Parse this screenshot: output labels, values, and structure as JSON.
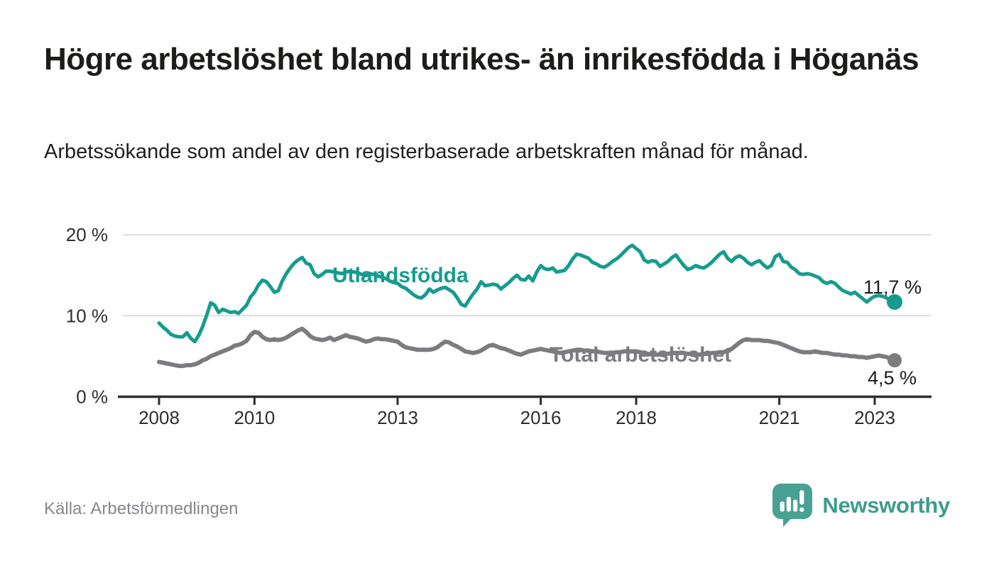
{
  "header": {
    "title": "Högre arbetslöshet bland utrikes- än inrikesfödda i Höganäs",
    "subtitle": "Arbetssökande som andel av den registerbaserade arbetskraften månad för månad."
  },
  "footer": {
    "source": "Källa: Arbetsförmedlingen",
    "brand": "Newsworthy",
    "logo_icon": "speech-bubble-bar-chart-icon",
    "logo_color": "#49a193"
  },
  "colors": {
    "series_utlandsfodda": "#169c8e",
    "series_total": "#7c7c80",
    "gridline": "#dddddd",
    "axis": "#2e2e2e",
    "background": "#ffffff"
  },
  "chart_data": {
    "type": "line",
    "title": "Högre arbetslöshet bland utrikes- än inrikesfödda i Höganäs",
    "subtitle": "Arbetssökande som andel av den registerbaserade arbetskraften månad för månad.",
    "unit": "%",
    "grid": "horizontal-only",
    "legend_position": "inline-labels-on-lines",
    "x_start_year": 2008,
    "x_step_years": 0.0833333,
    "x_axis": {
      "ticks": [
        2008,
        2010,
        2013,
        2016,
        2018,
        2021,
        2023
      ],
      "tick_labels": [
        "2008",
        "2010",
        "2013",
        "2016",
        "2018",
        "2021",
        "2023"
      ],
      "range_years": [
        2007.15,
        2024.2
      ]
    },
    "y_axis": {
      "ticks": [
        0,
        10,
        20
      ],
      "tick_labels": [
        "0 %",
        "10 %",
        "20 %"
      ],
      "range": [
        0,
        20
      ]
    },
    "series": [
      {
        "name": "Utlandsfödda",
        "color": "#169c8e",
        "line_width": 5,
        "end_value": 11.7,
        "end_label": "11,7 %",
        "values": [
          9.1,
          8.6,
          8.2,
          7.7,
          7.5,
          7.4,
          7.4,
          7.9,
          7.2,
          6.8,
          7.6,
          8.7,
          10.1,
          11.6,
          11.3,
          10.4,
          10.8,
          10.6,
          10.4,
          10.5,
          10.3,
          10.8,
          11.3,
          12.3,
          12.9,
          13.8,
          14.4,
          14.2,
          13.6,
          12.9,
          13.1,
          14.3,
          15.2,
          15.9,
          16.5,
          16.9,
          17.2,
          16.5,
          16.3,
          15.2,
          14.8,
          15.1,
          15.5,
          15.5,
          15.4,
          15.3,
          15.2,
          15.4,
          15.5,
          15.4,
          15.3,
          15.1,
          15.0,
          15.2,
          15.1,
          14.9,
          14.8,
          14.6,
          14.3,
          14.1,
          14.0,
          13.6,
          13.4,
          13.0,
          12.6,
          12.3,
          12.2,
          12.6,
          13.3,
          12.9,
          13.2,
          13.4,
          13.5,
          13.2,
          12.9,
          12.2,
          11.4,
          11.2,
          12.0,
          12.7,
          13.3,
          14.2,
          13.7,
          13.8,
          13.9,
          13.8,
          13.3,
          13.7,
          14.1,
          14.6,
          15.0,
          14.5,
          14.4,
          14.9,
          14.3,
          15.4,
          16.2,
          15.8,
          15.7,
          15.9,
          15.4,
          15.5,
          15.6,
          16.2,
          17.0,
          17.6,
          17.5,
          17.3,
          17.1,
          16.6,
          16.4,
          16.1,
          16.0,
          16.3,
          16.7,
          17.0,
          17.4,
          17.9,
          18.4,
          18.7,
          18.3,
          17.9,
          16.9,
          16.6,
          16.8,
          16.7,
          16.1,
          16.4,
          16.7,
          17.2,
          17.5,
          16.8,
          16.2,
          15.7,
          15.9,
          16.2,
          16.0,
          15.9,
          16.2,
          16.6,
          17.1,
          17.6,
          17.9,
          17.1,
          16.7,
          17.2,
          17.4,
          17.1,
          16.6,
          16.3,
          16.6,
          16.8,
          16.3,
          15.9,
          16.2,
          17.3,
          17.6,
          16.7,
          16.6,
          16.0,
          15.7,
          15.2,
          15.1,
          15.2,
          15.1,
          14.9,
          14.7,
          14.2,
          14.0,
          14.2,
          14.0,
          13.5,
          13.1,
          12.9,
          12.7,
          12.9,
          12.5,
          12.1,
          11.7,
          12.1,
          12.4,
          12.5,
          12.4,
          12.2,
          11.9,
          11.7
        ]
      },
      {
        "name": "Total arbetslöshet",
        "color": "#7c7c80",
        "line_width": 6,
        "end_value": 4.5,
        "end_label": "4,5 %",
        "values": [
          4.3,
          4.2,
          4.1,
          4.0,
          3.9,
          3.8,
          3.8,
          3.9,
          3.9,
          4.0,
          4.2,
          4.5,
          4.7,
          5.0,
          5.2,
          5.4,
          5.6,
          5.8,
          6.0,
          6.3,
          6.4,
          6.6,
          6.9,
          7.6,
          8.0,
          7.9,
          7.4,
          7.1,
          7.0,
          7.1,
          7.0,
          7.1,
          7.3,
          7.6,
          7.9,
          8.2,
          8.4,
          8.0,
          7.5,
          7.2,
          7.1,
          7.0,
          7.1,
          7.3,
          7.0,
          7.2,
          7.4,
          7.6,
          7.4,
          7.3,
          7.2,
          7.0,
          6.8,
          6.9,
          7.1,
          7.2,
          7.1,
          7.1,
          7.0,
          6.9,
          6.8,
          6.4,
          6.1,
          6.0,
          5.9,
          5.8,
          5.8,
          5.8,
          5.8,
          5.9,
          6.1,
          6.5,
          6.8,
          6.7,
          6.4,
          6.2,
          5.9,
          5.6,
          5.5,
          5.4,
          5.5,
          5.7,
          6.0,
          6.3,
          6.4,
          6.2,
          6.0,
          5.9,
          5.7,
          5.5,
          5.3,
          5.2,
          5.4,
          5.6,
          5.7,
          5.8,
          5.9,
          5.8,
          5.7,
          5.6,
          5.5,
          5.4,
          5.5,
          5.6,
          5.7,
          5.8,
          5.8,
          5.7,
          5.7,
          5.6,
          5.6,
          5.5,
          5.4,
          5.4,
          5.4,
          5.5,
          5.5,
          5.6,
          5.6,
          5.6,
          5.6,
          5.5,
          5.4,
          5.3,
          5.2,
          5.2,
          5.2,
          5.3,
          5.3,
          5.4,
          5.4,
          5.4,
          5.4,
          5.3,
          5.3,
          5.2,
          5.2,
          5.3,
          5.3,
          5.4,
          5.4,
          5.5,
          5.5,
          5.7,
          5.9,
          6.3,
          6.7,
          7.0,
          7.1,
          7.0,
          7.0,
          7.0,
          6.9,
          6.9,
          6.8,
          6.7,
          6.6,
          6.4,
          6.2,
          6.0,
          5.8,
          5.6,
          5.5,
          5.5,
          5.5,
          5.6,
          5.5,
          5.4,
          5.4,
          5.3,
          5.2,
          5.2,
          5.1,
          5.1,
          5.0,
          5.0,
          4.9,
          4.9,
          4.8,
          4.9,
          5.0,
          5.1,
          5.0,
          4.9,
          4.7,
          4.5
        ]
      }
    ]
  }
}
